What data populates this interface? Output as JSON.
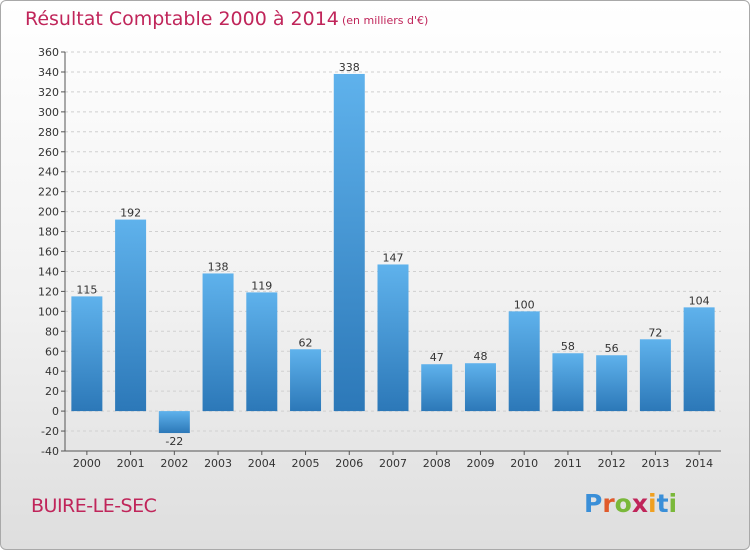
{
  "title": "Résultat Comptable 2000 à 2014",
  "subtitle": "(en milliers d'€)",
  "commune": "BUIRE-LE-SEC",
  "logo": {
    "text": "Proxiti",
    "letter_colors": [
      "#3a8fd8",
      "#e05a2b",
      "#7ab83a",
      "#c0255a",
      "#f0a020",
      "#3a8fd8",
      "#7ab83a"
    ]
  },
  "colors": {
    "bar_top": "#5fb2ec",
    "bar_bottom": "#2c78b8",
    "title": "#c0255a",
    "grid": "#d0d0d0"
  },
  "chart_data": {
    "type": "bar",
    "categories": [
      "2000",
      "2001",
      "2002",
      "2003",
      "2004",
      "2005",
      "2006",
      "2007",
      "2008",
      "2009",
      "2010",
      "2011",
      "2012",
      "2013",
      "2014"
    ],
    "values": [
      115,
      192,
      -22,
      138,
      119,
      62,
      338,
      147,
      47,
      48,
      100,
      58,
      56,
      72,
      104
    ],
    "ylim": [
      -40,
      360
    ],
    "ytick_step": 20,
    "xlabel": "",
    "ylabel": "",
    "grid": true
  }
}
